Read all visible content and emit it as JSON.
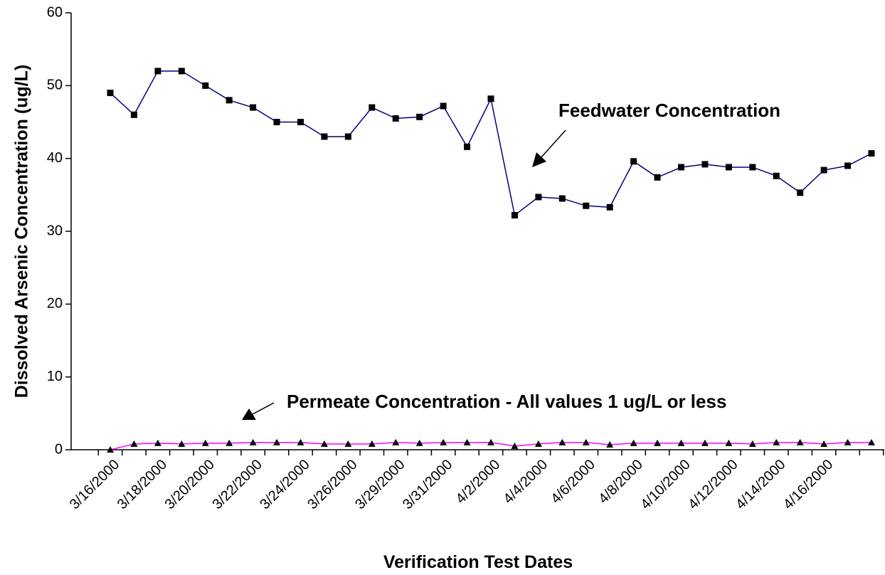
{
  "chart_data": {
    "type": "line",
    "y_label": "Dissolved Arsenic Concentration (ug/L)",
    "x_label": "Verification Test Dates",
    "categories": [
      "3/16/2000",
      null,
      "3/18/2000",
      null,
      "3/20/2000",
      null,
      "3/22/2000",
      null,
      "3/24/2000",
      null,
      "3/26/2000",
      null,
      "3/29/2000",
      null,
      "3/31/2000",
      null,
      "4/2/2000",
      null,
      "4/4/2000",
      null,
      "4/6/2000",
      null,
      "4/8/2000",
      null,
      "4/10/2000",
      null,
      "4/12/2000",
      null,
      "4/14/2000",
      null,
      "4/16/2000",
      null,
      null
    ],
    "series": [
      {
        "name": "Feedwater Concentration",
        "color": "#000080",
        "marker": "square",
        "values": [
          49,
          46,
          52,
          52,
          50,
          48,
          47,
          45,
          45,
          43,
          43,
          47,
          45.5,
          45.7,
          47.2,
          41.6,
          48.2,
          32.2,
          34.7,
          34.5,
          33.5,
          33.3,
          39.6,
          37.4,
          38.8,
          39.2,
          38.8,
          38.8,
          37.6,
          35.3,
          38.4,
          39,
          40.7
        ]
      },
      {
        "name": "Permeate Concentration - All values 1 ug/L or less",
        "color": "#ff00ff",
        "marker": "triangle",
        "values": [
          0,
          0.8,
          0.9,
          0.8,
          0.9,
          0.9,
          1,
          1,
          1,
          0.8,
          0.8,
          0.8,
          1,
          0.9,
          1,
          1,
          1,
          0.5,
          0.8,
          1,
          1,
          0.7,
          0.9,
          0.9,
          0.9,
          0.9,
          0.9,
          0.8,
          1,
          1,
          0.8,
          1,
          1
        ]
      }
    ],
    "ylim": [
      0,
      60
    ],
    "yticks": [
      0,
      10,
      20,
      30,
      40,
      50,
      60
    ],
    "legend": false
  }
}
